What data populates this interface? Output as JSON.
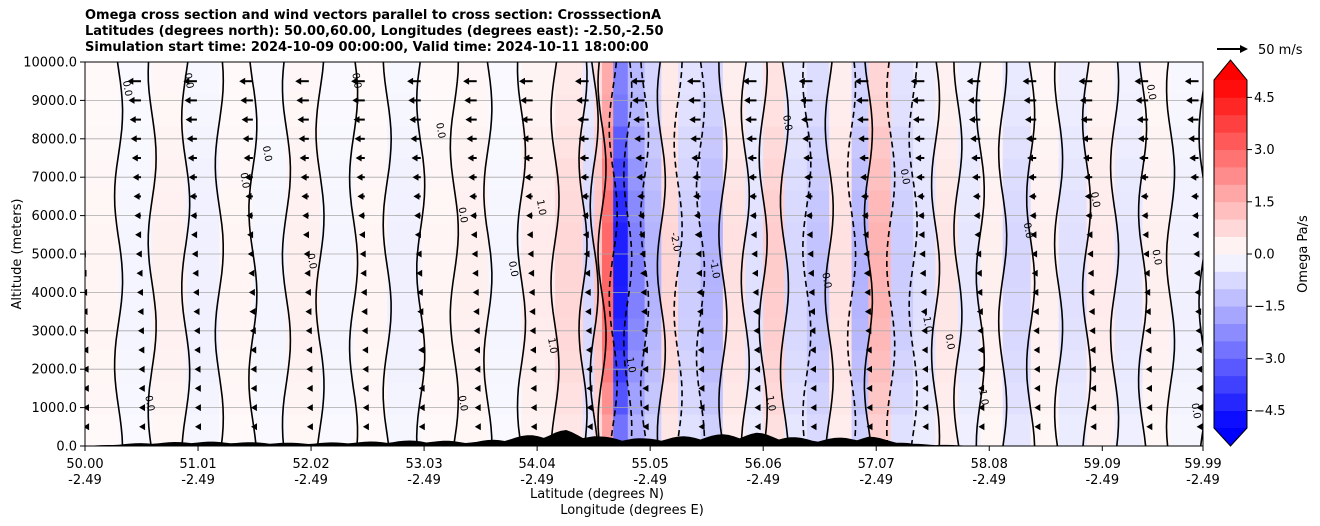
{
  "header": {
    "title_line1": "Omega cross section and wind vectors parallel to cross section: CrosssectionA",
    "title_line2": "Latitudes (degrees north): 50.00,60.00, Longitudes (degrees east): -2.50,-2.50",
    "title_line3": "Simulation start time: 2024-10-09 00:00:00, Valid time: 2024-10-11 18:00:00"
  },
  "quiver_key": {
    "label": "50 m/s"
  },
  "colors": {
    "positive": "#ff0000",
    "negative": "#0000ff",
    "terrain": "#000000"
  },
  "chart_data": {
    "type": "heatmap",
    "title": "Omega cross section and wind vectors parallel to cross section: CrosssectionA",
    "xlabel_line1": "Latitude (degrees N)",
    "xlabel_line2": "Longitude (degrees E)",
    "ylabel": "Altitude (meters)",
    "xlim": [
      50.0,
      59.99
    ],
    "ylim": [
      0,
      10000
    ],
    "x_ticks": [
      {
        "lat": "50.00",
        "lon": "-2.49",
        "v": 50.0
      },
      {
        "lat": "51.01",
        "lon": "-2.49",
        "v": 51.01
      },
      {
        "lat": "52.02",
        "lon": "-2.49",
        "v": 52.02
      },
      {
        "lat": "53.03",
        "lon": "-2.49",
        "v": 53.03
      },
      {
        "lat": "54.04",
        "lon": "-2.49",
        "v": 54.04
      },
      {
        "lat": "55.05",
        "lon": "-2.49",
        "v": 55.05
      },
      {
        "lat": "56.06",
        "lon": "-2.49",
        "v": 56.06
      },
      {
        "lat": "57.07",
        "lon": "-2.49",
        "v": 57.07
      },
      {
        "lat": "58.08",
        "lon": "-2.49",
        "v": 58.08
      },
      {
        "lat": "59.09",
        "lon": "-2.49",
        "v": 59.09
      },
      {
        "lat": "59.99",
        "lon": "-2.49",
        "v": 59.99
      }
    ],
    "y_ticks": [
      {
        "label": "0.0",
        "v": 0
      },
      {
        "label": "1000.0",
        "v": 1000
      },
      {
        "label": "2000.0",
        "v": 2000
      },
      {
        "label": "3000.0",
        "v": 3000
      },
      {
        "label": "4000.0",
        "v": 4000
      },
      {
        "label": "5000.0",
        "v": 5000
      },
      {
        "label": "6000.0",
        "v": 6000
      },
      {
        "label": "7000.0",
        "v": 7000
      },
      {
        "label": "8000.0",
        "v": 8000
      },
      {
        "label": "9000.0",
        "v": 9000
      },
      {
        "label": "10000.0",
        "v": 10000
      }
    ],
    "grid": true,
    "colorbar": {
      "label": "Omega Pa/s",
      "range": [
        -5,
        5
      ],
      "step": 0.5,
      "ticks": [
        {
          "label": "4.5",
          "v": 4.5
        },
        {
          "label": "3.0",
          "v": 3.0
        },
        {
          "label": "1.5",
          "v": 1.5
        },
        {
          "label": "0.0",
          "v": 0.0
        },
        {
          "label": "−1.5",
          "v": -1.5
        },
        {
          "label": "−3.0",
          "v": -3.0
        },
        {
          "label": "−4.5",
          "v": -4.5
        }
      ]
    },
    "omega_bands": [
      {
        "lat": 50.0,
        "a": 0.2
      },
      {
        "lat": 50.3,
        "a": -0.2
      },
      {
        "lat": 50.6,
        "a": 0.3
      },
      {
        "lat": 50.9,
        "a": -0.3
      },
      {
        "lat": 51.2,
        "a": 0.2
      },
      {
        "lat": 51.5,
        "a": -0.2
      },
      {
        "lat": 51.8,
        "a": 0.3
      },
      {
        "lat": 52.1,
        "a": -0.2
      },
      {
        "lat": 52.4,
        "a": 0.2
      },
      {
        "lat": 52.7,
        "a": -0.3
      },
      {
        "lat": 53.0,
        "a": 0.2
      },
      {
        "lat": 53.3,
        "a": 0.3
      },
      {
        "lat": 53.6,
        "a": -0.2
      },
      {
        "lat": 53.9,
        "a": 0.4
      },
      {
        "lat": 54.2,
        "a": 0.8
      },
      {
        "lat": 54.45,
        "a": -0.8
      },
      {
        "lat": 54.55,
        "a": 1.2
      },
      {
        "lat": 54.62,
        "a": 3.0
      },
      {
        "lat": 54.72,
        "a": -4.5
      },
      {
        "lat": 54.85,
        "a": -2.5
      },
      {
        "lat": 55.0,
        "a": -1.5
      },
      {
        "lat": 55.15,
        "a": 0.8
      },
      {
        "lat": 55.3,
        "a": -1.0
      },
      {
        "lat": 55.5,
        "a": -1.5
      },
      {
        "lat": 55.7,
        "a": 0.6
      },
      {
        "lat": 55.9,
        "a": -0.6
      },
      {
        "lat": 56.06,
        "a": 1.0
      },
      {
        "lat": 56.25,
        "a": -0.8
      },
      {
        "lat": 56.45,
        "a": -1.2
      },
      {
        "lat": 56.65,
        "a": 0.6
      },
      {
        "lat": 56.85,
        "a": -1.5
      },
      {
        "lat": 57.0,
        "a": 1.5
      },
      {
        "lat": 57.2,
        "a": -1.0
      },
      {
        "lat": 57.4,
        "a": -0.6
      },
      {
        "lat": 57.6,
        "a": 0.5
      },
      {
        "lat": 57.8,
        "a": -0.5
      },
      {
        "lat": 58.0,
        "a": 0.3
      },
      {
        "lat": 58.2,
        "a": -0.8
      },
      {
        "lat": 58.45,
        "a": 0.3
      },
      {
        "lat": 58.7,
        "a": -0.6
      },
      {
        "lat": 58.95,
        "a": 0.4
      },
      {
        "lat": 59.2,
        "a": -0.5
      },
      {
        "lat": 59.45,
        "a": 0.3
      },
      {
        "lat": 59.7,
        "a": -0.3
      },
      {
        "lat": 59.99,
        "a": 0.2
      }
    ],
    "contour_labels": [
      {
        "lat": 50.35,
        "alt": 9300,
        "text": "0.0"
      },
      {
        "lat": 50.9,
        "alt": 9500,
        "text": "0.0"
      },
      {
        "lat": 52.4,
        "alt": 9500,
        "text": "0.0"
      },
      {
        "lat": 51.6,
        "alt": 7600,
        "text": "0.0"
      },
      {
        "lat": 51.4,
        "alt": 6900,
        "text": "0.0"
      },
      {
        "lat": 52.0,
        "alt": 4800,
        "text": "0.0"
      },
      {
        "lat": 53.15,
        "alt": 8200,
        "text": "0.0"
      },
      {
        "lat": 53.35,
        "alt": 6000,
        "text": "0.0"
      },
      {
        "lat": 53.8,
        "alt": 4600,
        "text": "0.0"
      },
      {
        "lat": 54.05,
        "alt": 6200,
        "text": "1.0"
      },
      {
        "lat": 54.15,
        "alt": 2600,
        "text": "1.0"
      },
      {
        "lat": 54.85,
        "alt": 2100,
        "text": "1.0"
      },
      {
        "lat": 55.25,
        "alt": 5300,
        "text": "-2.0"
      },
      {
        "lat": 55.6,
        "alt": 4600,
        "text": "-1.0"
      },
      {
        "lat": 56.25,
        "alt": 8400,
        "text": "0.0"
      },
      {
        "lat": 56.6,
        "alt": 4300,
        "text": "0.0"
      },
      {
        "lat": 57.3,
        "alt": 7000,
        "text": "0.0"
      },
      {
        "lat": 57.5,
        "alt": 3200,
        "text": "-1.0"
      },
      {
        "lat": 58.0,
        "alt": 1300,
        "text": "-1.0"
      },
      {
        "lat": 58.4,
        "alt": 5600,
        "text": "0.0"
      },
      {
        "lat": 59.0,
        "alt": 6400,
        "text": "0.0"
      },
      {
        "lat": 59.5,
        "alt": 9200,
        "text": "0.0"
      },
      {
        "lat": 59.55,
        "alt": 4900,
        "text": "0.0"
      },
      {
        "lat": 59.9,
        "alt": 900,
        "text": "0.0"
      },
      {
        "lat": 50.55,
        "alt": 1100,
        "text": "0.0"
      },
      {
        "lat": 53.35,
        "alt": 1100,
        "text": "0.0"
      },
      {
        "lat": 56.1,
        "alt": 1100,
        "text": "1.0"
      },
      {
        "lat": 57.7,
        "alt": 2700,
        "text": "0.0"
      }
    ],
    "wind_vector_rows_alt": [
      9500,
      9000,
      8500,
      8000,
      7500,
      7000,
      6500,
      6000,
      5500,
      5000,
      4500,
      4000,
      3500,
      3000,
      2500,
      2000,
      1500,
      1000,
      500
    ],
    "wind_vector_cols_lat": [
      50.0,
      50.5,
      51.0,
      51.5,
      52.0,
      52.5,
      53.0,
      53.5,
      54.0,
      54.5,
      55.0,
      55.5,
      56.0,
      56.5,
      57.0,
      57.5,
      58.0,
      58.5,
      59.0,
      59.5,
      59.95
    ],
    "wind_speed_top_ms": 22,
    "wind_speed_bottom_ms": 3,
    "terrain_alt_m": [
      {
        "lat": 50.0,
        "alt": 0
      },
      {
        "lat": 50.5,
        "alt": 80
      },
      {
        "lat": 51.0,
        "alt": 120
      },
      {
        "lat": 52.0,
        "alt": 80
      },
      {
        "lat": 53.0,
        "alt": 150
      },
      {
        "lat": 53.5,
        "alt": 120
      },
      {
        "lat": 54.0,
        "alt": 300
      },
      {
        "lat": 54.3,
        "alt": 420
      },
      {
        "lat": 54.6,
        "alt": 250
      },
      {
        "lat": 55.0,
        "alt": 200
      },
      {
        "lat": 55.5,
        "alt": 280
      },
      {
        "lat": 56.0,
        "alt": 350
      },
      {
        "lat": 56.5,
        "alt": 180
      },
      {
        "lat": 57.0,
        "alt": 260
      },
      {
        "lat": 57.4,
        "alt": 60
      },
      {
        "lat": 58.0,
        "alt": 0
      },
      {
        "lat": 59.99,
        "alt": 0
      }
    ]
  }
}
